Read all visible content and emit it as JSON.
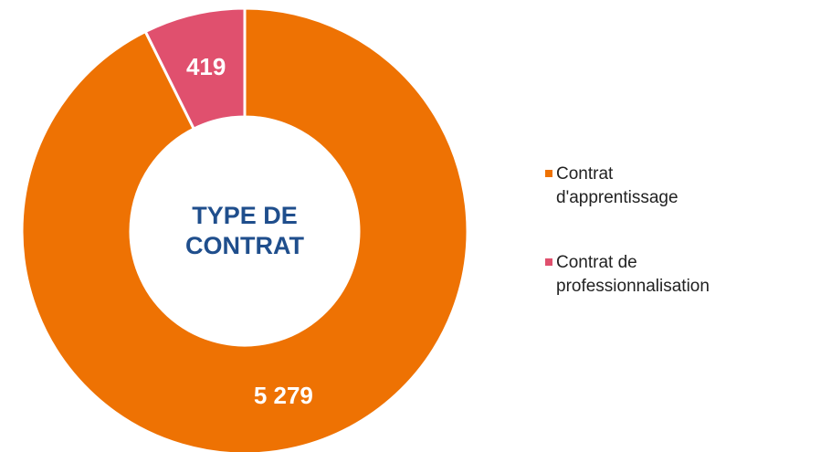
{
  "chart_data": {
    "type": "donut",
    "center_label": "TYPE DE CONTRAT",
    "categories": [
      "Contrat d'apprentissage",
      "Contrat de professionnalisation"
    ],
    "values": [
      5279,
      419
    ],
    "value_labels": [
      "5 279",
      "419"
    ],
    "colors": [
      "#ee7203",
      "#e0506e"
    ],
    "legend": "right"
  }
}
